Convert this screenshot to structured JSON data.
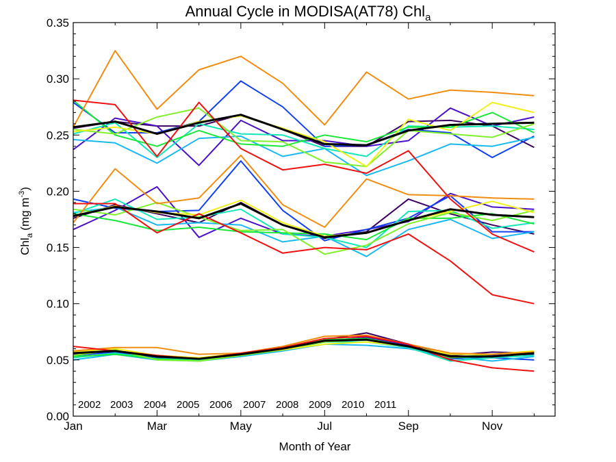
{
  "chart_data": {
    "type": "line",
    "title": "Annual Cycle in MODISA(AT78) Chl",
    "title_subscript": "a",
    "xlabel": "Month of Year",
    "ylabel": "Chl",
    "ylabel_subscript": "a",
    "ylabel_unit": "(mg m",
    "ylabel_unit_superscript": "-3",
    "ylabel_unit_close": ")",
    "x_range": [
      1,
      12.5
    ],
    "ylim": [
      0.0,
      0.35
    ],
    "grid": false,
    "legend_placement": "bottom-left",
    "x_ticks": [
      {
        "value": 1,
        "label": "Jan"
      },
      {
        "value": 3,
        "label": "Mar"
      },
      {
        "value": 5,
        "label": "May"
      },
      {
        "value": 7,
        "label": "Jul"
      },
      {
        "value": 9,
        "label": "Sep"
      },
      {
        "value": 11,
        "label": "Nov"
      }
    ],
    "y_ticks": [
      {
        "value": 0.0,
        "label": "0.00"
      },
      {
        "value": 0.05,
        "label": "0.05"
      },
      {
        "value": 0.1,
        "label": "0.10"
      },
      {
        "value": 0.15,
        "label": "0.15"
      },
      {
        "value": 0.2,
        "label": "0.20"
      },
      {
        "value": 0.25,
        "label": "0.25"
      },
      {
        "value": 0.3,
        "label": "0.30"
      },
      {
        "value": 0.35,
        "label": "0.35"
      }
    ],
    "x": [
      1,
      2,
      3,
      4,
      5,
      6,
      7,
      8,
      9,
      10,
      11,
      12
    ],
    "series": [
      {
        "name": "2002",
        "color": "#3c0060",
        "upper": [
          0.256,
          0.262,
          0.258,
          0.258,
          0.268,
          0.255,
          0.24,
          0.24,
          0.262,
          0.263,
          0.258,
          0.239
        ],
        "middle": [
          0.176,
          0.188,
          0.18,
          0.172,
          0.19,
          0.17,
          0.158,
          0.164,
          0.193,
          0.18,
          0.17,
          0.162
        ],
        "lower": [
          0.056,
          0.058,
          0.054,
          0.051,
          0.055,
          0.061,
          0.068,
          0.074,
          0.064,
          0.054,
          0.057,
          0.056
        ]
      },
      {
        "name": "2003",
        "color": "#4a10c8",
        "upper": [
          0.237,
          0.265,
          0.258,
          0.223,
          0.263,
          0.245,
          0.245,
          0.24,
          0.245,
          0.274,
          0.258,
          0.266
        ],
        "middle": [
          0.166,
          0.183,
          0.204,
          0.159,
          0.176,
          0.162,
          0.16,
          0.166,
          0.173,
          0.198,
          0.186,
          0.184
        ],
        "lower": [
          0.055,
          0.057,
          0.053,
          0.05,
          0.055,
          0.06,
          0.067,
          0.07,
          0.063,
          0.052,
          0.054,
          0.055
        ]
      },
      {
        "name": "2004",
        "color": "#1040f0",
        "upper": [
          0.279,
          0.252,
          0.252,
          0.262,
          0.298,
          0.275,
          0.24,
          0.241,
          0.255,
          0.252,
          0.23,
          0.249
        ],
        "middle": [
          0.193,
          0.185,
          0.182,
          0.183,
          0.227,
          0.183,
          0.156,
          0.166,
          0.176,
          0.196,
          0.164,
          0.164
        ],
        "lower": [
          0.054,
          0.057,
          0.052,
          0.049,
          0.054,
          0.06,
          0.068,
          0.068,
          0.061,
          0.051,
          0.052,
          0.05
        ]
      },
      {
        "name": "2005",
        "color": "#18b8f0",
        "upper": [
          0.246,
          0.243,
          0.225,
          0.247,
          0.249,
          0.231,
          0.238,
          0.214,
          0.227,
          0.242,
          0.24,
          0.248
        ],
        "middle": [
          0.181,
          0.186,
          0.17,
          0.172,
          0.17,
          0.155,
          0.16,
          0.142,
          0.166,
          0.175,
          0.158,
          0.164
        ],
        "lower": [
          0.05,
          0.055,
          0.05,
          0.049,
          0.053,
          0.058,
          0.064,
          0.063,
          0.06,
          0.053,
          0.049,
          0.053
        ]
      },
      {
        "name": "2006",
        "color": "#10e8b8",
        "upper": [
          0.251,
          0.261,
          0.23,
          0.26,
          0.251,
          0.25,
          0.238,
          0.231,
          0.258,
          0.257,
          0.258,
          0.255
        ],
        "middle": [
          0.18,
          0.193,
          0.175,
          0.177,
          0.184,
          0.162,
          0.159,
          0.15,
          0.182,
          0.183,
          0.167,
          0.172
        ],
        "lower": [
          0.052,
          0.056,
          0.051,
          0.05,
          0.055,
          0.059,
          0.066,
          0.066,
          0.061,
          0.049,
          0.052,
          0.054
        ]
      },
      {
        "name": "2007",
        "color": "#18e838",
        "upper": [
          0.281,
          0.25,
          0.24,
          0.254,
          0.242,
          0.24,
          0.25,
          0.244,
          0.257,
          0.257,
          0.27,
          0.252
        ],
        "middle": [
          0.18,
          0.174,
          0.165,
          0.168,
          0.164,
          0.163,
          0.162,
          0.157,
          0.176,
          0.176,
          0.18,
          0.171
        ],
        "lower": [
          0.053,
          0.055,
          0.051,
          0.049,
          0.054,
          0.059,
          0.068,
          0.069,
          0.062,
          0.052,
          0.053,
          0.056
        ]
      },
      {
        "name": "2008",
        "color": "#80f028",
        "upper": [
          0.255,
          0.251,
          0.266,
          0.274,
          0.245,
          0.244,
          0.226,
          0.222,
          0.254,
          0.251,
          0.248,
          0.26
        ],
        "middle": [
          0.184,
          0.179,
          0.19,
          0.177,
          0.165,
          0.166,
          0.144,
          0.152,
          0.171,
          0.181,
          0.174,
          0.183
        ],
        "lower": [
          0.054,
          0.059,
          0.05,
          0.049,
          0.054,
          0.059,
          0.066,
          0.068,
          0.062,
          0.052,
          0.055,
          0.057
        ]
      },
      {
        "name": "2009",
        "color": "#f0f018",
        "upper": [
          0.253,
          0.257,
          0.251,
          0.262,
          0.267,
          0.256,
          0.244,
          0.222,
          0.264,
          0.254,
          0.279,
          0.27
        ],
        "middle": [
          0.178,
          0.187,
          0.181,
          0.179,
          0.192,
          0.172,
          0.16,
          0.163,
          0.174,
          0.182,
          0.191,
          0.181
        ],
        "lower": [
          0.057,
          0.06,
          0.054,
          0.052,
          0.056,
          0.059,
          0.064,
          0.066,
          0.062,
          0.055,
          0.055,
          0.058
        ]
      },
      {
        "name": "2010",
        "color": "#f08c10",
        "upper": [
          0.257,
          0.325,
          0.273,
          0.308,
          0.32,
          0.296,
          0.259,
          0.306,
          0.282,
          0.29,
          0.288,
          0.285
        ],
        "middle": [
          0.172,
          0.22,
          0.189,
          0.194,
          0.232,
          0.188,
          0.168,
          0.211,
          0.197,
          0.196,
          0.194,
          0.193
        ],
        "lower": [
          0.058,
          0.061,
          0.061,
          0.055,
          0.056,
          0.062,
          0.071,
          0.072,
          0.064,
          0.056,
          0.055,
          0.057
        ]
      },
      {
        "name": "2011",
        "color": "#f01010",
        "upper": [
          0.281,
          0.277,
          0.231,
          0.279,
          0.238,
          0.219,
          0.224,
          0.216,
          0.236,
          0.193,
          0.162,
          0.146
        ],
        "middle": [
          0.189,
          0.189,
          0.163,
          0.18,
          0.163,
          0.145,
          0.15,
          0.148,
          0.162,
          0.138,
          0.108,
          0.1
        ],
        "lower": [
          0.062,
          0.058,
          0.054,
          0.051,
          0.056,
          0.061,
          0.069,
          0.071,
          0.064,
          0.05,
          0.043,
          0.04
        ]
      }
    ],
    "climatology": {
      "color": "#000000",
      "upper": [
        0.257,
        0.262,
        0.251,
        0.261,
        0.268,
        0.255,
        0.242,
        0.241,
        0.254,
        0.259,
        0.26,
        0.261
      ],
      "middle": [
        0.178,
        0.186,
        0.182,
        0.176,
        0.189,
        0.17,
        0.159,
        0.163,
        0.174,
        0.184,
        0.179,
        0.177
      ],
      "lower": [
        0.056,
        0.058,
        0.053,
        0.051,
        0.055,
        0.06,
        0.067,
        0.068,
        0.062,
        0.053,
        0.053,
        0.056
      ]
    }
  }
}
